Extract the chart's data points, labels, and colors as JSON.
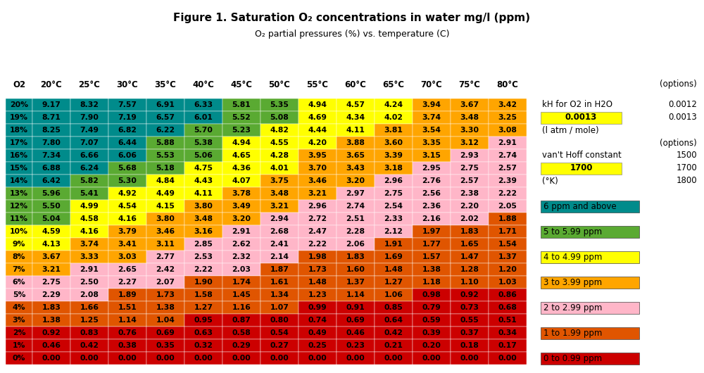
{
  "title": "Figure 1. Saturation O₂ concentrations in water mg/l (ppm)",
  "subtitle": "O₂ partial pressures (%) vs. temperature (C)",
  "col_headers": [
    "O2",
    "20°C",
    "25°C",
    "30°C",
    "35°C",
    "40°C",
    "45°C",
    "50°C",
    "55°C",
    "60°C",
    "65°C",
    "70°C",
    "75°C",
    "80°C"
  ],
  "row_labels": [
    "20%",
    "19%",
    "18%",
    "17%",
    "16%",
    "15%",
    "14%",
    "13%",
    "12%",
    "11%",
    "10%",
    "9%",
    "8%",
    "7%",
    "6%",
    "5%",
    "4%",
    "3%",
    "2%",
    "1%",
    "0%"
  ],
  "table_data": [
    [
      9.17,
      8.32,
      7.57,
      6.91,
      6.33,
      5.81,
      5.35,
      4.94,
      4.57,
      4.24,
      3.94,
      3.67,
      3.42
    ],
    [
      8.71,
      7.9,
      7.19,
      6.57,
      6.01,
      5.52,
      5.08,
      4.69,
      4.34,
      4.02,
      3.74,
      3.48,
      3.25
    ],
    [
      8.25,
      7.49,
      6.82,
      6.22,
      5.7,
      5.23,
      4.82,
      4.44,
      4.11,
      3.81,
      3.54,
      3.3,
      3.08
    ],
    [
      7.8,
      7.07,
      6.44,
      5.88,
      5.38,
      4.94,
      4.55,
      4.2,
      3.88,
      3.6,
      3.35,
      3.12,
      2.91
    ],
    [
      7.34,
      6.66,
      6.06,
      5.53,
      5.06,
      4.65,
      4.28,
      3.95,
      3.65,
      3.39,
      3.15,
      2.93,
      2.74
    ],
    [
      6.88,
      6.24,
      5.68,
      5.18,
      4.75,
      4.36,
      4.01,
      3.7,
      3.43,
      3.18,
      2.95,
      2.75,
      2.57
    ],
    [
      6.42,
      5.82,
      5.3,
      4.84,
      4.43,
      4.07,
      3.75,
      3.46,
      3.2,
      2.96,
      2.76,
      2.57,
      2.39
    ],
    [
      5.96,
      5.41,
      4.92,
      4.49,
      4.11,
      3.78,
      3.48,
      3.21,
      2.97,
      2.75,
      2.56,
      2.38,
      2.22
    ],
    [
      5.5,
      4.99,
      4.54,
      4.15,
      3.8,
      3.49,
      3.21,
      2.96,
      2.74,
      2.54,
      2.36,
      2.2,
      2.05
    ],
    [
      5.04,
      4.58,
      4.16,
      3.8,
      3.48,
      3.2,
      2.94,
      2.72,
      2.51,
      2.33,
      2.16,
      2.02,
      1.88
    ],
    [
      4.59,
      4.16,
      3.79,
      3.46,
      3.16,
      2.91,
      2.68,
      2.47,
      2.28,
      2.12,
      1.97,
      1.83,
      1.71
    ],
    [
      4.13,
      3.74,
      3.41,
      3.11,
      2.85,
      2.62,
      2.41,
      2.22,
      2.06,
      1.91,
      1.77,
      1.65,
      1.54
    ],
    [
      3.67,
      3.33,
      3.03,
      2.77,
      2.53,
      2.32,
      2.14,
      1.98,
      1.83,
      1.69,
      1.57,
      1.47,
      1.37
    ],
    [
      3.21,
      2.91,
      2.65,
      2.42,
      2.22,
      2.03,
      1.87,
      1.73,
      1.6,
      1.48,
      1.38,
      1.28,
      1.2
    ],
    [
      2.75,
      2.5,
      2.27,
      2.07,
      1.9,
      1.74,
      1.61,
      1.48,
      1.37,
      1.27,
      1.18,
      1.1,
      1.03
    ],
    [
      2.29,
      2.08,
      1.89,
      1.73,
      1.58,
      1.45,
      1.34,
      1.23,
      1.14,
      1.06,
      0.98,
      0.92,
      0.86
    ],
    [
      1.83,
      1.66,
      1.51,
      1.38,
      1.27,
      1.16,
      1.07,
      0.99,
      0.91,
      0.85,
      0.79,
      0.73,
      0.68
    ],
    [
      1.38,
      1.25,
      1.14,
      1.04,
      0.95,
      0.87,
      0.8,
      0.74,
      0.69,
      0.64,
      0.59,
      0.55,
      0.51
    ],
    [
      0.92,
      0.83,
      0.76,
      0.69,
      0.63,
      0.58,
      0.54,
      0.49,
      0.46,
      0.42,
      0.39,
      0.37,
      0.34
    ],
    [
      0.46,
      0.42,
      0.38,
      0.35,
      0.32,
      0.29,
      0.27,
      0.25,
      0.23,
      0.21,
      0.2,
      0.18,
      0.17
    ],
    [
      0.0,
      0.0,
      0.0,
      0.0,
      0.0,
      0.0,
      0.0,
      0.0,
      0.0,
      0.0,
      0.0,
      0.0,
      0.0
    ]
  ],
  "color_teal": "#008B8B",
  "color_green": "#5aaa32",
  "color_yellow": "#ffff00",
  "color_amber": "#ffa500",
  "color_pink": "#ffb6c8",
  "color_orange": "#e05500",
  "color_red": "#cc0000",
  "legend_labels": [
    "6 ppm and above",
    "5 to 5.99 ppm",
    "4 to 4.99 ppm",
    "3 to 3.99 ppm",
    "2 to 2.99 ppm",
    "1 to 1.99 ppm",
    "0 to 0.99 ppm"
  ],
  "legend_colors": [
    "#008B8B",
    "#5aaa32",
    "#ffff00",
    "#ffa500",
    "#ffb6c8",
    "#e05500",
    "#cc0000"
  ],
  "background_color": "#ffffff",
  "title_fontsize": 11,
  "subtitle_fontsize": 9,
  "cell_fontsize": 7.8,
  "header_fontsize": 8.5,
  "annotation_fontsize": 8.5
}
